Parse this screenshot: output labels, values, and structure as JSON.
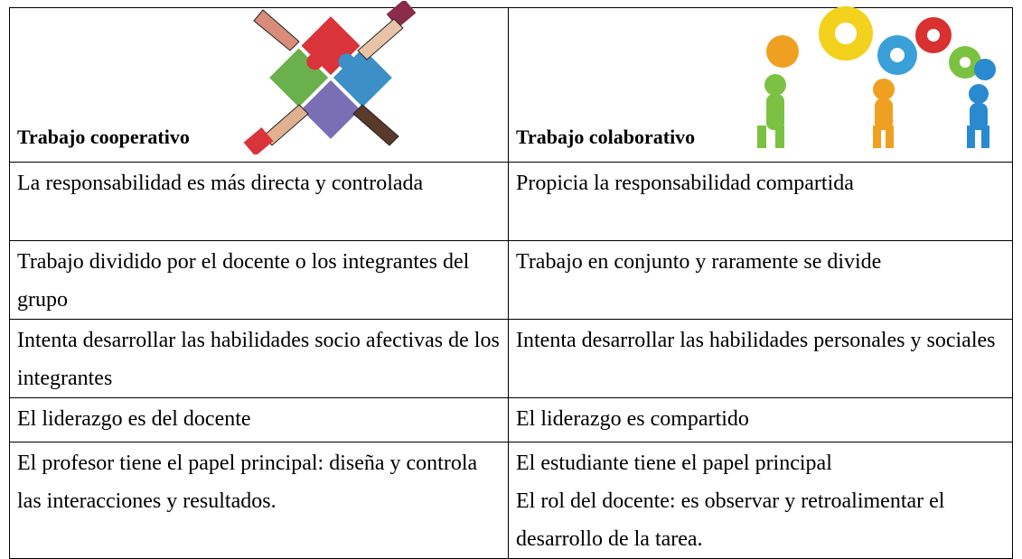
{
  "table": {
    "header": [
      "Trabajo cooperativo",
      "Trabajo colaborativo"
    ],
    "rows": [
      [
        [
          "La responsabilidad es más directa y controlada"
        ],
        [
          "Propicia la responsabilidad compartida"
        ]
      ],
      [
        [
          "Trabajo dividido por el docente o los integrantes del grupo"
        ],
        [
          "Trabajo en conjunto y raramente se divide"
        ]
      ],
      [
        [
          "Intenta desarrollar las habilidades socio afectivas de los integrantes"
        ],
        [
          "Intenta desarrollar las habilidades personales y sociales"
        ]
      ],
      [
        [
          "El liderazgo es del docente"
        ],
        [
          "El liderazgo es compartido"
        ]
      ],
      [
        [
          "El profesor tiene el papel principal: diseña y controla las interacciones y resultados."
        ],
        [
          "El estudiante tiene el papel principal",
          "El rol del docente: es observar y retroalimentar el desarrollo de la tarea."
        ]
      ]
    ]
  }
}
